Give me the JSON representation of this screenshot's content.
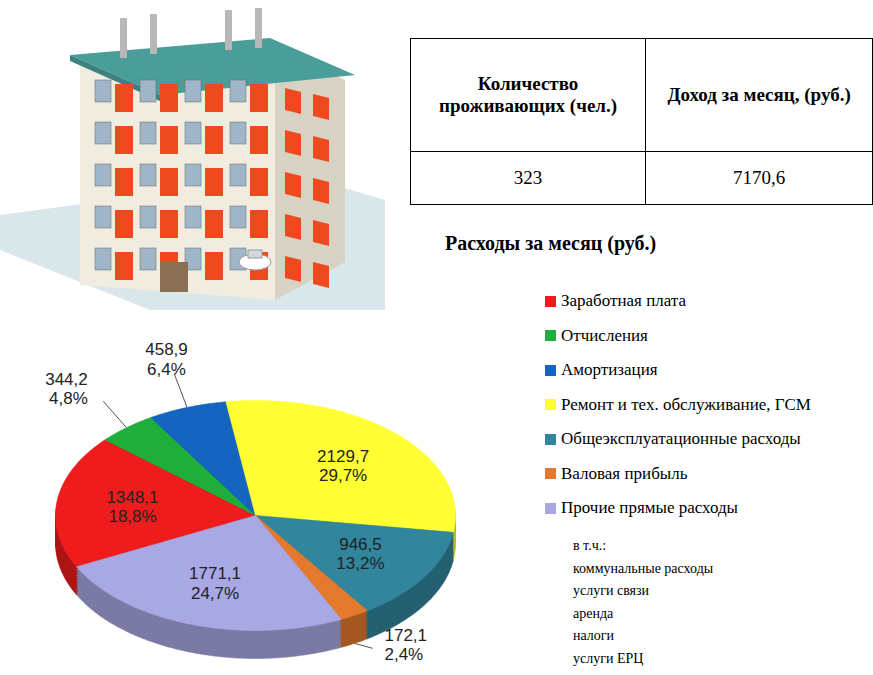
{
  "table": {
    "header": [
      "Количество проживающих (чел.)",
      "Доход за месяц, (руб.)"
    ],
    "rows": [
      [
        "323",
        "7170,6"
      ]
    ]
  },
  "chart_data": {
    "type": "pie",
    "title": "Расходы  за месяц (руб.)",
    "categories": [
      "Заработная плата",
      "Отчисления",
      "Амортизация",
      "Ремонт и тех. обслуживание,  ГСМ",
      "Общеэксплуатационные  расходы",
      "Валовая прибыль",
      "Прочие прямые расходы"
    ],
    "values": [
      1348.1,
      344.2,
      458.9,
      2129.7,
      946.5,
      172.1,
      1771.1
    ],
    "value_labels": [
      "1348,1",
      "344,2",
      "458,9",
      "2129,7",
      "946,5",
      "172,1",
      "1771,1"
    ],
    "percents": [
      18.8,
      4.8,
      6.4,
      29.7,
      13.2,
      2.4,
      24.7
    ],
    "percent_labels": [
      "18,8%",
      "4,8%",
      "6,4%",
      "29,7%",
      "13,2%",
      "2,4%",
      "24,7%"
    ],
    "colors": [
      "#ee1c1c",
      "#1fae3a",
      "#1565c0",
      "#ffff33",
      "#31859c",
      "#e4782c",
      "#a8a8e4"
    ],
    "data_labels": true,
    "legend": "right",
    "legend_note": {
      "title": "в т.ч.:",
      "items": [
        "коммунальные расходы",
        "услуги связи",
        "аренда",
        "налоги",
        "услуги ЕРЦ"
      ]
    }
  }
}
